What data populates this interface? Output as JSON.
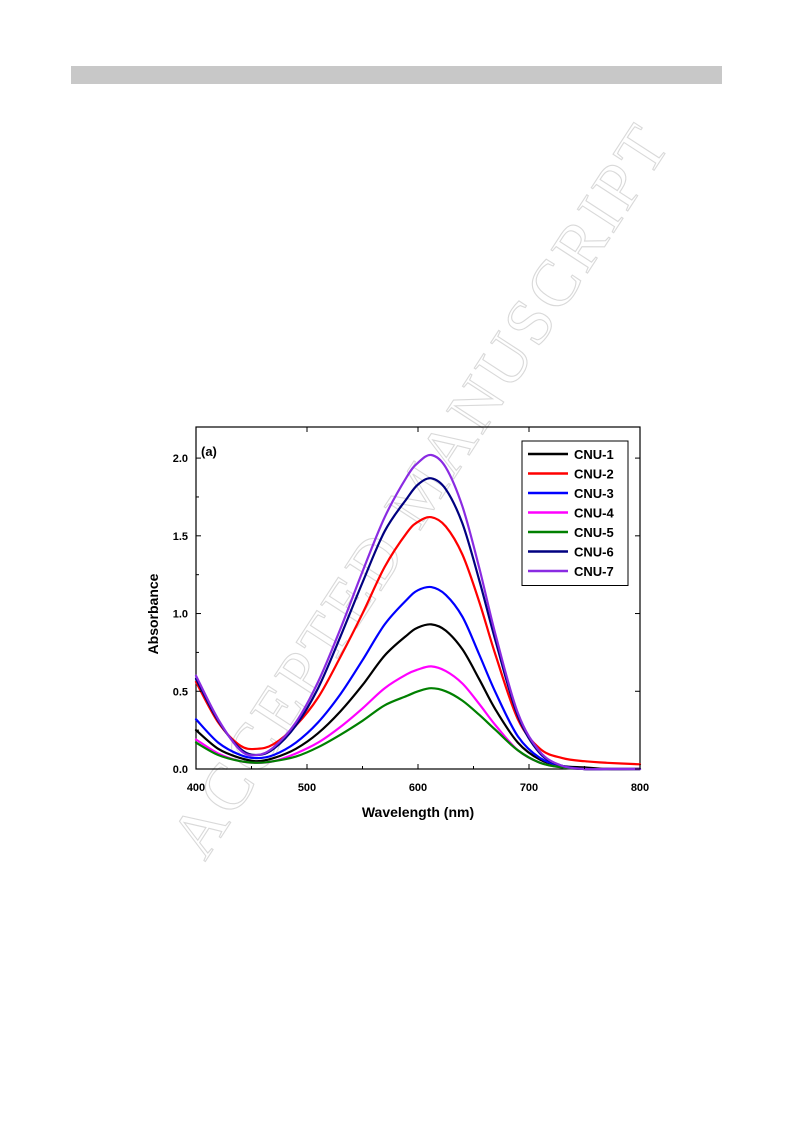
{
  "watermark_text": "ACCEPTED MANUSCRIPT",
  "chart_data": {
    "type": "line",
    "panel_label": "(a)",
    "xlabel": "Wavelength (nm)",
    "ylabel": "Absorbance",
    "xlim": [
      400,
      800
    ],
    "ylim": [
      0,
      2.2
    ],
    "xticks": [
      400,
      500,
      600,
      700,
      800
    ],
    "xtick_labels": [
      "400",
      "500",
      "600",
      "700",
      "800"
    ],
    "yticks": [
      0,
      0.5,
      1.0,
      1.5,
      2.0
    ],
    "ytick_labels": [
      "0.0",
      "0.5",
      "1.0",
      "1.5",
      "2.0"
    ],
    "grid": false,
    "legend_position": "top-right",
    "series": [
      {
        "name": "CNU-1",
        "color": "#000000",
        "x": [
          400,
          420,
          440,
          455,
          470,
          490,
          510,
          530,
          550,
          570,
          590,
          600,
          612,
          625,
          640,
          655,
          670,
          690,
          710,
          730,
          750,
          770,
          800
        ],
        "y": [
          0.25,
          0.13,
          0.07,
          0.05,
          0.07,
          0.13,
          0.23,
          0.37,
          0.54,
          0.73,
          0.86,
          0.91,
          0.93,
          0.89,
          0.77,
          0.58,
          0.38,
          0.17,
          0.06,
          0.02,
          0.01,
          0.0,
          0.0
        ]
      },
      {
        "name": "CNU-2",
        "color": "#ff0000",
        "x": [
          400,
          420,
          440,
          455,
          470,
          490,
          510,
          530,
          550,
          570,
          590,
          600,
          612,
          625,
          640,
          655,
          670,
          690,
          710,
          730,
          750,
          770,
          800
        ],
        "y": [
          0.56,
          0.3,
          0.15,
          0.13,
          0.16,
          0.28,
          0.46,
          0.72,
          1.0,
          1.3,
          1.52,
          1.59,
          1.62,
          1.56,
          1.38,
          1.08,
          0.73,
          0.32,
          0.13,
          0.07,
          0.05,
          0.04,
          0.03
        ]
      },
      {
        "name": "CNU-3",
        "color": "#0000ff",
        "x": [
          400,
          420,
          440,
          455,
          470,
          490,
          510,
          530,
          550,
          570,
          590,
          600,
          612,
          625,
          640,
          655,
          670,
          690,
          710,
          730,
          750,
          770,
          800
        ],
        "y": [
          0.32,
          0.17,
          0.09,
          0.07,
          0.09,
          0.17,
          0.3,
          0.48,
          0.7,
          0.93,
          1.09,
          1.15,
          1.17,
          1.12,
          0.98,
          0.74,
          0.49,
          0.21,
          0.07,
          0.02,
          0.0,
          0.0,
          0.0
        ]
      },
      {
        "name": "CNU-4",
        "color": "#ff00ff",
        "x": [
          400,
          420,
          440,
          455,
          470,
          490,
          510,
          530,
          550,
          570,
          590,
          600,
          612,
          625,
          640,
          655,
          670,
          690,
          710,
          730,
          750,
          770,
          800
        ],
        "y": [
          0.19,
          0.1,
          0.05,
          0.04,
          0.05,
          0.1,
          0.17,
          0.27,
          0.39,
          0.52,
          0.61,
          0.64,
          0.66,
          0.63,
          0.55,
          0.42,
          0.28,
          0.12,
          0.04,
          0.01,
          0.0,
          0.0,
          0.0
        ]
      },
      {
        "name": "CNU-5",
        "color": "#008000",
        "x": [
          400,
          420,
          440,
          455,
          470,
          490,
          510,
          530,
          550,
          570,
          590,
          600,
          612,
          625,
          640,
          655,
          670,
          690,
          710,
          730,
          750,
          770,
          800
        ],
        "y": [
          0.17,
          0.09,
          0.05,
          0.04,
          0.05,
          0.08,
          0.14,
          0.22,
          0.31,
          0.41,
          0.47,
          0.5,
          0.52,
          0.5,
          0.44,
          0.35,
          0.25,
          0.12,
          0.04,
          0.01,
          0.0,
          0.0,
          0.0
        ]
      },
      {
        "name": "CNU-6",
        "color": "#000080",
        "x": [
          400,
          420,
          440,
          455,
          470,
          490,
          510,
          530,
          550,
          570,
          590,
          600,
          612,
          625,
          640,
          655,
          670,
          690,
          710,
          730,
          750,
          770,
          800
        ],
        "y": [
          0.58,
          0.31,
          0.13,
          0.09,
          0.13,
          0.28,
          0.52,
          0.85,
          1.2,
          1.53,
          1.74,
          1.83,
          1.87,
          1.8,
          1.58,
          1.22,
          0.82,
          0.34,
          0.1,
          0.02,
          0.0,
          0.0,
          0.0
        ]
      },
      {
        "name": "CNU-7",
        "color": "#8a2be2",
        "x": [
          400,
          420,
          440,
          455,
          470,
          490,
          510,
          530,
          550,
          570,
          590,
          600,
          612,
          625,
          640,
          655,
          670,
          690,
          710,
          730,
          750,
          770,
          800
        ],
        "y": [
          0.6,
          0.32,
          0.12,
          0.09,
          0.14,
          0.3,
          0.56,
          0.9,
          1.27,
          1.62,
          1.88,
          1.97,
          2.02,
          1.94,
          1.69,
          1.3,
          0.86,
          0.36,
          0.11,
          0.02,
          0.0,
          0.0,
          0.0
        ]
      }
    ]
  }
}
